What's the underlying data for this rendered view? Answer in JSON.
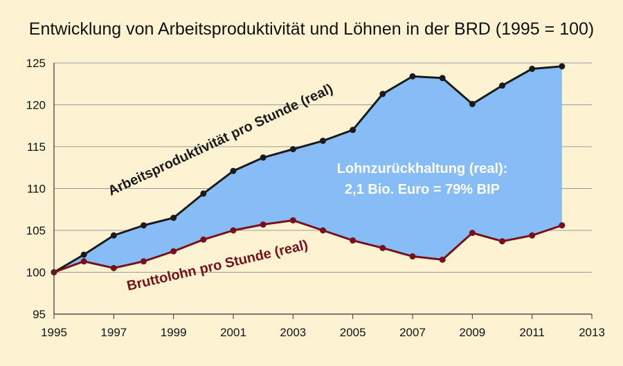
{
  "chart_data": {
    "type": "line",
    "title": "Entwicklung von Arbeitsproduktivität und  Löhnen in der BRD (1995 = 100)",
    "xlabel": "",
    "ylabel": "",
    "xlim": [
      1995,
      2013
    ],
    "ylim": [
      95,
      125
    ],
    "x_ticks": [
      1995,
      1997,
      1999,
      2001,
      2003,
      2005,
      2007,
      2009,
      2011,
      2013
    ],
    "y_ticks": [
      95,
      100,
      105,
      110,
      115,
      120,
      125
    ],
    "grid": "horizontal",
    "x": [
      1995,
      1996,
      1997,
      1998,
      1999,
      2000,
      2001,
      2002,
      2003,
      2004,
      2005,
      2006,
      2007,
      2008,
      2009,
      2010,
      2011,
      2012
    ],
    "series": [
      {
        "name": "Arbeitsproduktivität pro Stunde (real)",
        "color": "#1a1a1a",
        "values": [
          100,
          102.1,
          104.4,
          105.6,
          106.5,
          109.4,
          112.1,
          113.7,
          114.7,
          115.7,
          117.0,
          121.3,
          123.4,
          123.2,
          120.1,
          122.3,
          124.3,
          124.6
        ]
      },
      {
        "name": "Bruttolohn pro Stunde (real)",
        "color": "#7a0f1c",
        "values": [
          100,
          101.3,
          100.5,
          101.3,
          102.5,
          103.9,
          105.0,
          105.7,
          106.2,
          105.0,
          103.8,
          102.9,
          101.9,
          101.5,
          104.7,
          103.7,
          104.4,
          105.6
        ]
      }
    ],
    "fill_between": {
      "color": "#86bdf7"
    },
    "annotation": {
      "lines": [
        "Lohnzurückhaltung (real):",
        "2,1 Bio. Euro = 79% BIP"
      ]
    }
  }
}
